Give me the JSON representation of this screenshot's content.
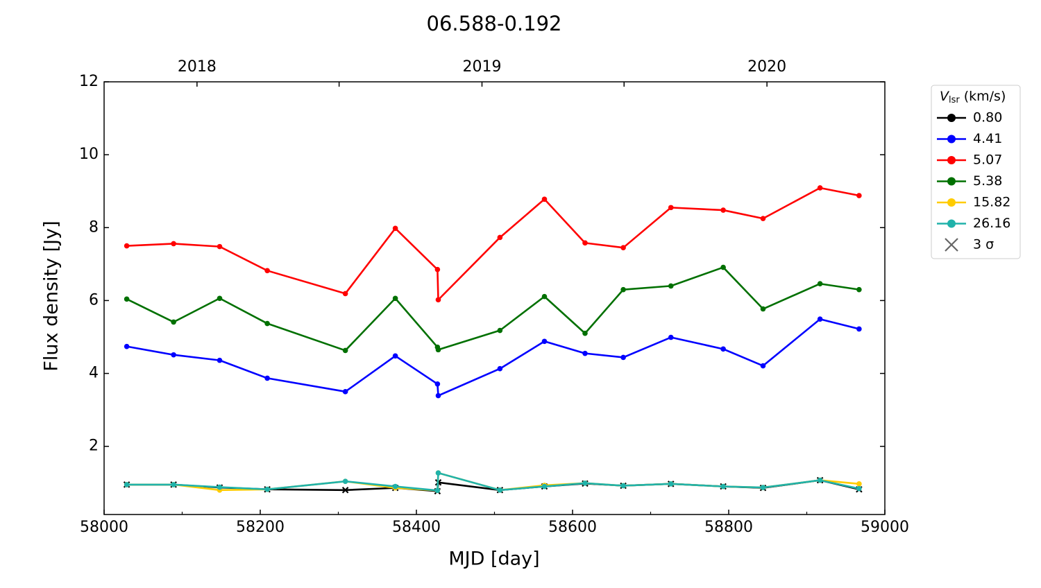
{
  "chart_data": {
    "type": "line",
    "title": "06.588-0.192",
    "xlabel": "MJD [day]",
    "ylabel": "Flux density [Jy]",
    "x": [
      58029,
      58089,
      58148,
      58209,
      58309,
      58373,
      58427,
      58428,
      58507,
      58564,
      58616,
      58665,
      58726,
      58793,
      58844,
      58917,
      58967
    ],
    "series": [
      {
        "name": "0.80",
        "color": "#000000",
        "marker": "x",
        "values": [
          0.95,
          0.95,
          0.87,
          0.82,
          0.8,
          0.86,
          0.77,
          1.01,
          0.8,
          0.9,
          0.98,
          0.92,
          0.97,
          0.9,
          0.86,
          1.07,
          0.82
        ]
      },
      {
        "name": "4.41",
        "color": "#0000ff",
        "values": [
          4.74,
          4.51,
          4.36,
          3.87,
          3.5,
          4.48,
          3.71,
          3.39,
          4.13,
          4.88,
          4.55,
          4.44,
          4.99,
          4.67,
          4.21,
          5.49,
          5.22
        ]
      },
      {
        "name": "5.07",
        "color": "#ff0000",
        "values": [
          7.5,
          7.56,
          7.48,
          6.82,
          6.19,
          7.98,
          6.85,
          6.02,
          7.73,
          8.78,
          7.58,
          7.45,
          8.55,
          8.48,
          8.25,
          9.09,
          8.88
        ]
      },
      {
        "name": "5.38",
        "color": "#007000",
        "values": [
          6.04,
          5.41,
          6.06,
          5.37,
          4.63,
          6.06,
          4.72,
          4.65,
          5.18,
          6.11,
          5.1,
          6.3,
          6.4,
          6.91,
          5.77,
          6.46,
          6.3
        ]
      },
      {
        "name": "15.82",
        "color": "#ffcc00",
        "values": [
          0.95,
          0.95,
          0.8,
          0.82,
          1.04,
          0.86,
          0.79,
          1.27,
          0.8,
          0.93,
          0.99,
          0.92,
          0.97,
          0.9,
          0.87,
          1.07,
          0.97
        ]
      },
      {
        "name": "26.16",
        "color": "#20b2aa",
        "values": [
          0.95,
          0.95,
          0.88,
          0.82,
          1.04,
          0.9,
          0.79,
          1.27,
          0.8,
          0.9,
          0.99,
          0.92,
          0.97,
          0.9,
          0.87,
          1.07,
          0.84
        ]
      }
    ],
    "legend_title": {
      "symbol": "V",
      "subscript": "lsr",
      "unit": "(km/s)"
    },
    "limit_label": "3 σ",
    "limit_color": "#666666",
    "legend": "outside-right",
    "xlim": [
      58000,
      59000
    ],
    "xticks": [
      58000,
      58200,
      58400,
      58600,
      58800,
      59000
    ],
    "xminor": [
      58100,
      58300,
      58500,
      58700,
      58900
    ],
    "ylim": [
      0.13,
      12
    ],
    "yticks": [
      2,
      4,
      6,
      8,
      10,
      12
    ],
    "x2ticks": [
      {
        "value": 58119,
        "label": "2018"
      },
      {
        "value": 58484,
        "label": "2019"
      },
      {
        "value": 58849,
        "label": "2020"
      }
    ],
    "x2minor": [
      58301,
      58666
    ]
  }
}
